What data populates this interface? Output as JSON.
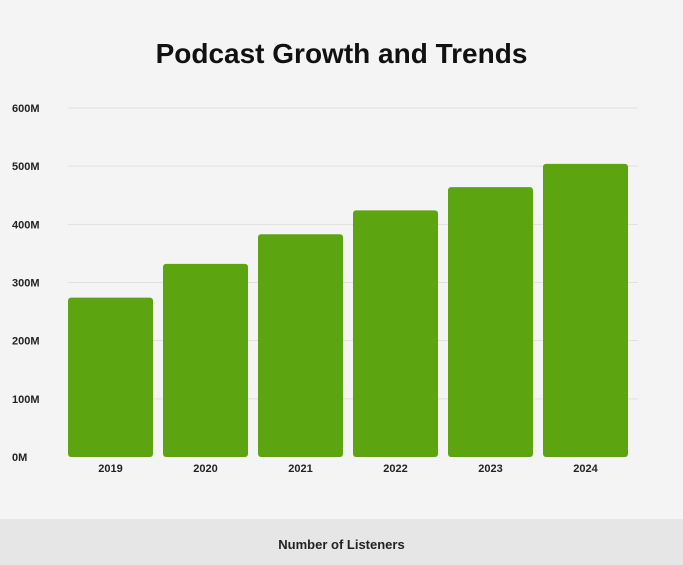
{
  "chart_data": {
    "type": "bar",
    "title": "Podcast Growth and Trends",
    "xlabel": "Number of Listeners",
    "ylabel": "",
    "categories": [
      "2019",
      "2020",
      "2021",
      "2022",
      "2023",
      "2024"
    ],
    "values": [
      274,
      332,
      383,
      424,
      464,
      504
    ],
    "value_unit": "M",
    "ylim": [
      0,
      600
    ],
    "yticks": [
      0,
      100,
      200,
      300,
      400,
      500,
      600
    ],
    "ytick_labels": [
      "0M",
      "100M",
      "200M",
      "300M",
      "400M",
      "500M",
      "600M"
    ],
    "grid": true,
    "legend": "none",
    "bar_color": "#5ca510",
    "background_color": "#f4f4f4"
  }
}
